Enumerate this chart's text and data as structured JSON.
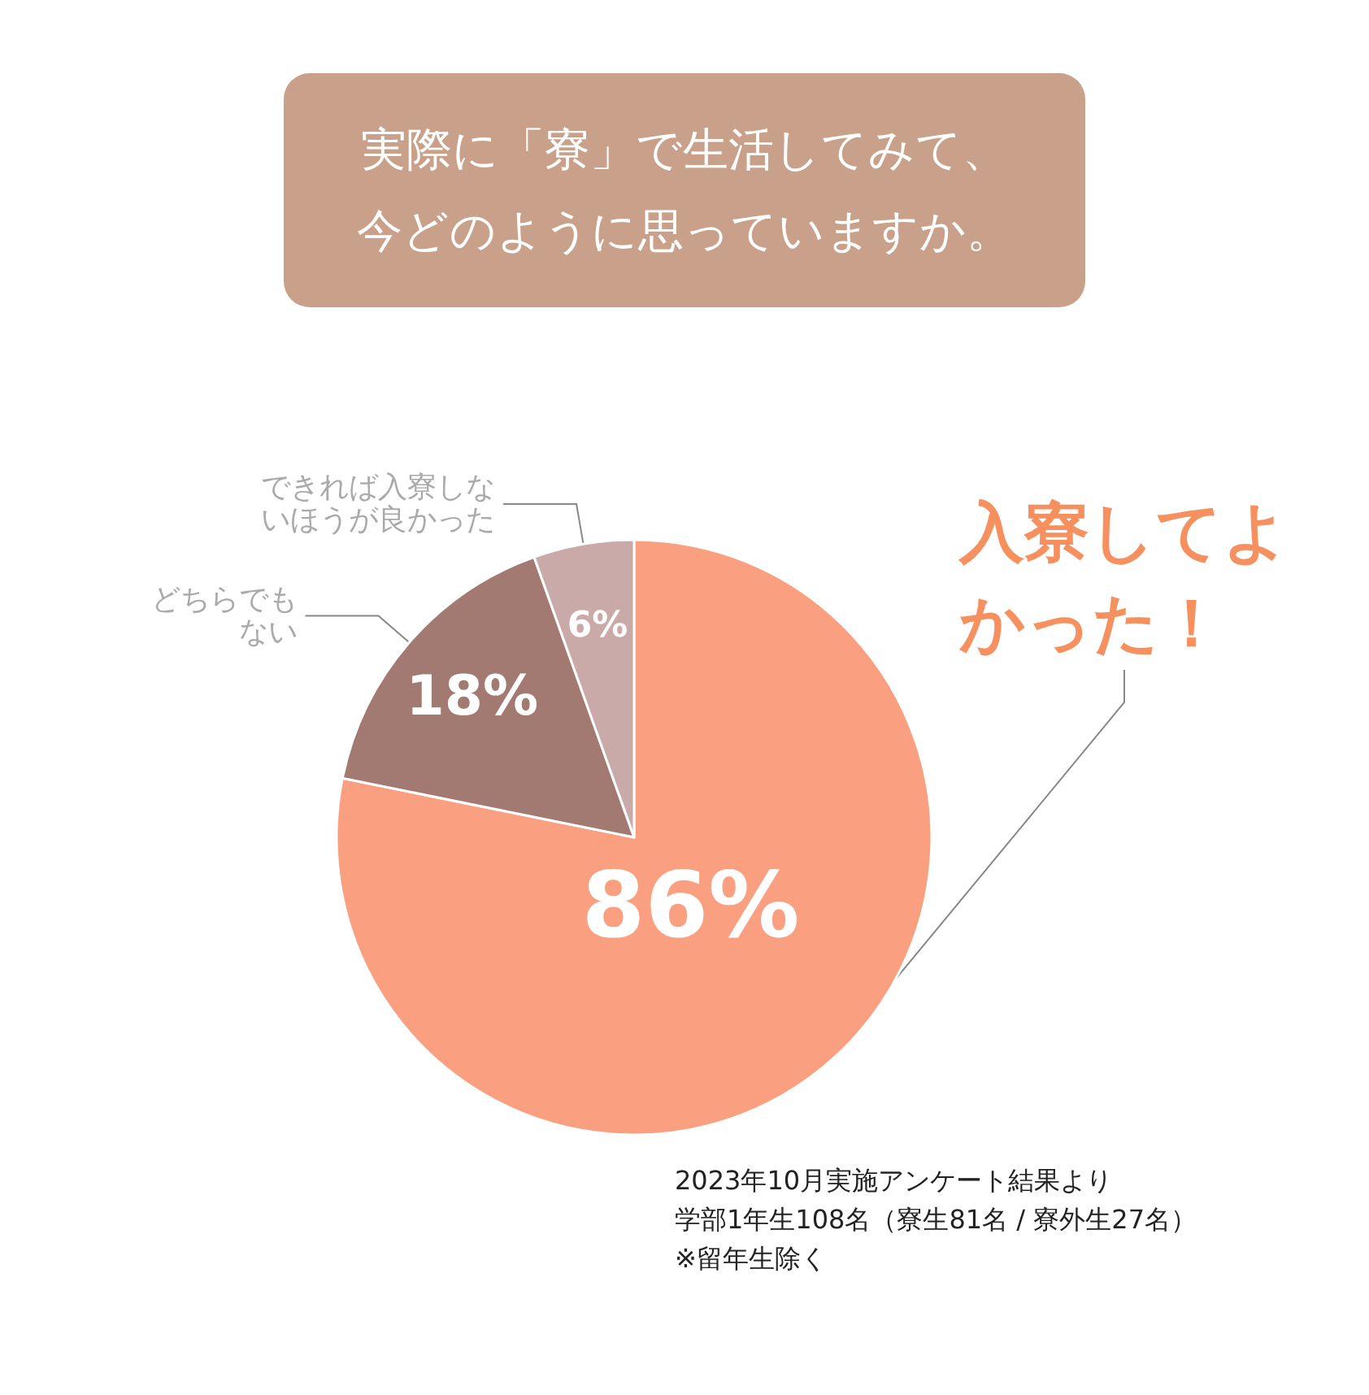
{
  "chart_data": {
    "type": "pie",
    "title": "実際に「寮」で生活してみて、今どのように思っていますか。",
    "categories": [
      "入寮してよかった！",
      "どちらでもない",
      "できれば入寮しないほうが良かった"
    ],
    "values": [
      86,
      18,
      6
    ],
    "value_labels": [
      "86%",
      "18%",
      "6%"
    ],
    "colors": [
      "#fa9f7f",
      "#a37a72",
      "#c9aaa8"
    ],
    "annotations": [
      "2023年10月実施アンケート結果より",
      "学部1年生108名（寮生81名 / 寮外生27名）",
      "※留年生除く"
    ],
    "legend": false
  }
}
